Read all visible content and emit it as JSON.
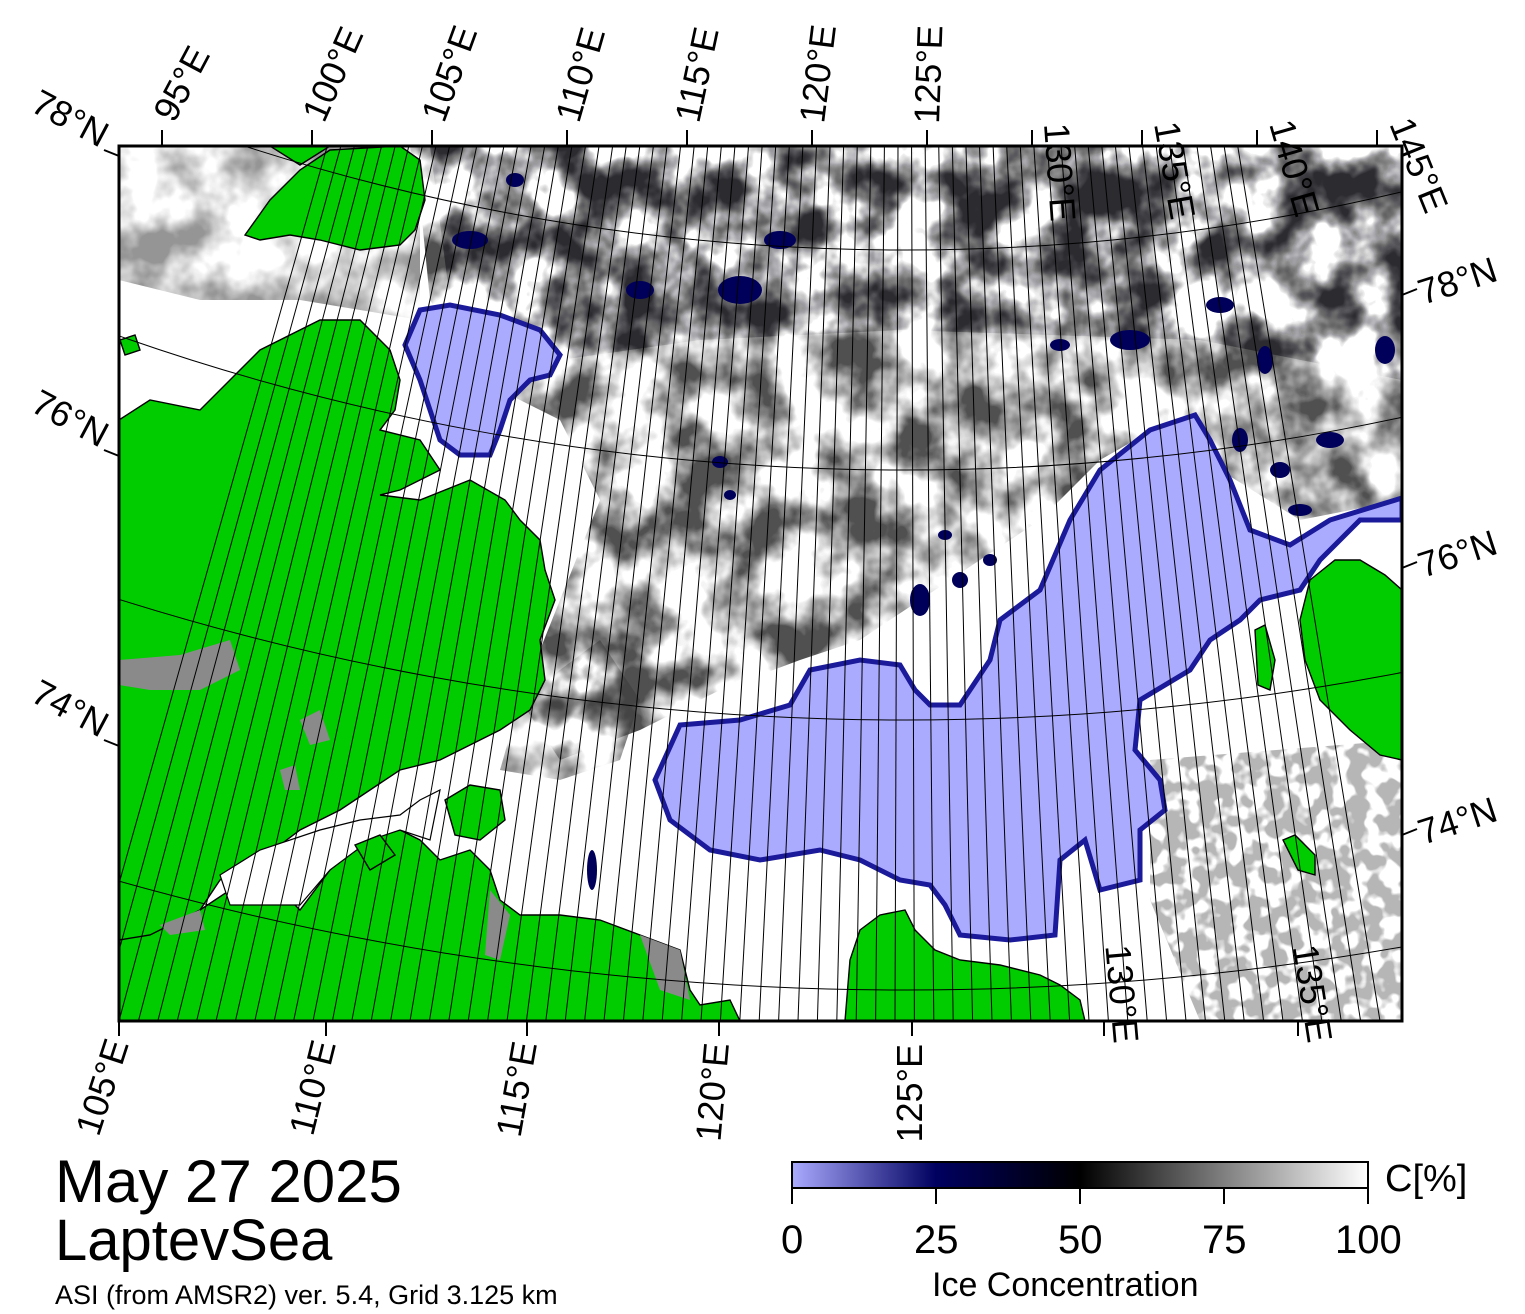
{
  "map": {
    "lat_ticks_left": [
      "78°N",
      "76°N",
      "74°N"
    ],
    "lat_ticks_right": [
      "78°N",
      "76°N",
      "74°N"
    ],
    "lon_ticks_top": [
      "95°E",
      "100°E",
      "105°E",
      "110°E",
      "115°E",
      "120°E",
      "125°E",
      "130°E",
      "135°E",
      "140°E",
      "145°E"
    ],
    "lon_ticks_bottom": [
      "105°E",
      "110°E",
      "115°E",
      "120°E",
      "125°E",
      "130°E",
      "135°E"
    ],
    "colors": {
      "land": "#00cc00",
      "land_shadow": "#888888",
      "ice_low": "#aaaaff",
      "ice_mid": "#000060",
      "ice_50": "#000000",
      "ice_high": "#ffffff",
      "frame": "#000000"
    }
  },
  "annotations": {
    "date": "May 27 2025",
    "region": "LaptevSea",
    "credit": "ASI (from AMSR2) ver. 5.4,  Grid 3.125 km"
  },
  "colorbar": {
    "title": "Ice Concentration",
    "unit": "C[%]",
    "range": [
      0,
      100
    ],
    "ticks": [
      "0",
      "25",
      "50",
      "75",
      "100"
    ]
  }
}
